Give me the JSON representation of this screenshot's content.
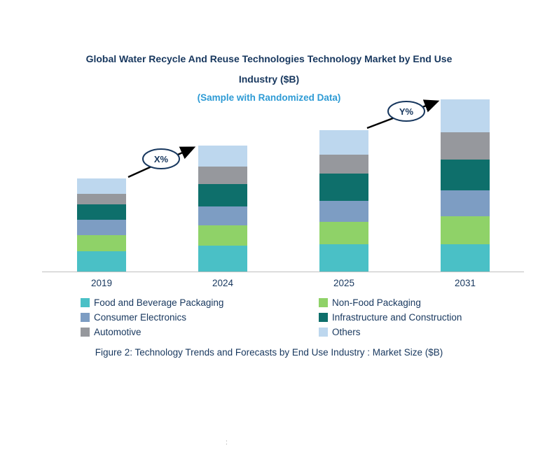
{
  "header": {
    "title_line1": "Global Water Recycle And Reuse Technologies Technology Market by End Use",
    "title_line2": "Industry ($B)",
    "subtitle": "(Sample with Randomized Data)"
  },
  "caption": "Figure 2: Technology Trends and Forecasts by End Use Industry : Market Size ($B)",
  "stray_mark": ":",
  "colors": {
    "title_navy": "#17375E",
    "subtitle_blue": "#2E9BD5",
    "axis_gray": "#BFBFBF",
    "arrow_black": "#000000"
  },
  "chart_data": {
    "type": "bar",
    "stacked": true,
    "title": "Global Water Recycle And Reuse Technologies Technology Market by End Use Industry ($B)",
    "subtitle": "(Sample with Randomized Data)",
    "unit": "$B",
    "xlabel": "",
    "ylabel": "",
    "grid": false,
    "legend_position": "bottom",
    "categories": [
      "2019",
      "2024",
      "2025",
      "2031"
    ],
    "series": [
      {
        "name": "Food and Beverage Packaging",
        "color": "#4AC0C6",
        "values": [
          1.2,
          1.5,
          1.6,
          1.6
        ]
      },
      {
        "name": "Non-Food Packaging",
        "color": "#8FD268",
        "values": [
          0.9,
          1.2,
          1.3,
          1.6
        ]
      },
      {
        "name": "Consumer Electronics",
        "color": "#7D9DC3",
        "values": [
          0.9,
          1.1,
          1.2,
          1.5
        ]
      },
      {
        "name": "Infrastructure and Construction",
        "color": "#0E6F6B",
        "values": [
          0.9,
          1.3,
          1.6,
          1.8
        ]
      },
      {
        "name": "Automotive",
        "color": "#96989D",
        "values": [
          0.6,
          1.0,
          1.1,
          1.6
        ]
      },
      {
        "name": "Others",
        "color": "#BDD7EE",
        "values": [
          0.9,
          1.2,
          1.4,
          1.9
        ]
      }
    ],
    "annotations": [
      {
        "label": "X%",
        "between": [
          "2019",
          "2024"
        ]
      },
      {
        "label": "Y%",
        "between": [
          "2025",
          "2031"
        ]
      }
    ]
  }
}
